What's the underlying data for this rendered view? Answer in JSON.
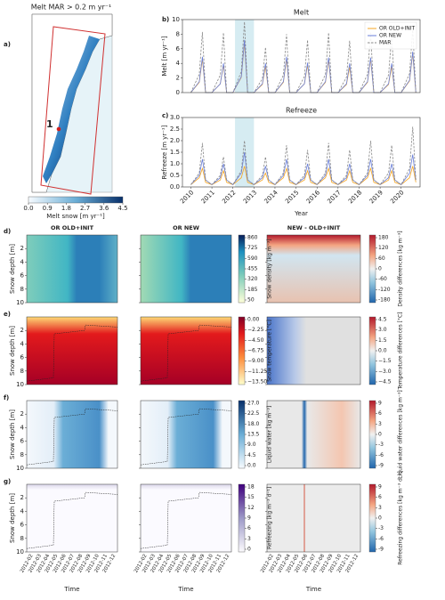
{
  "panel_labels": [
    "a)",
    "b)",
    "c)",
    "d)",
    "e)",
    "f)",
    "g)"
  ],
  "map": {
    "title": "Melt MAR > 0.2 m yr⁻¹",
    "site_label": "1",
    "colorbar": {
      "label": "Melt snow [m yr⁻¹]",
      "ticks": [
        {
          "value": 0,
          "label": "0.0"
        },
        {
          "value": 0.9,
          "label": "0.9"
        },
        {
          "value": 1.8,
          "label": "1.8"
        },
        {
          "value": 2.7,
          "label": "2.7"
        },
        {
          "value": 3.6,
          "label": "3.6"
        },
        {
          "value": 4.5,
          "label": "4.5"
        }
      ]
    }
  },
  "chart_data": [
    {
      "type": "line",
      "title": "Melt",
      "y_label": "Melt [m yr⁻¹]",
      "x_label": "Year",
      "x": [
        2010,
        2010.4,
        2010.55,
        2010.7,
        2011,
        2011.4,
        2011.55,
        2011.7,
        2012,
        2012.4,
        2012.55,
        2012.7,
        2013,
        2013.4,
        2013.55,
        2013.7,
        2014,
        2014.4,
        2014.55,
        2014.7,
        2015,
        2015.4,
        2015.55,
        2015.7,
        2016,
        2016.4,
        2016.55,
        2016.7,
        2017,
        2017.4,
        2017.55,
        2017.7,
        2018,
        2018.4,
        2018.55,
        2018.7,
        2019,
        2019.4,
        2019.55,
        2019.7,
        2020,
        2020.4,
        2020.55,
        2020.7
      ],
      "xlim": [
        2009.6,
        2020.9
      ],
      "ylim": [
        0,
        10
      ],
      "yticks": [
        0,
        2,
        4,
        6,
        8,
        10
      ],
      "highlight_x": [
        2012.1,
        2013.0
      ],
      "legend": "upper right",
      "series": [
        {
          "name": "OR OLD+INIT",
          "color": "#f5a623",
          "linestyle": "solid",
          "values": [
            0,
            1.4,
            4.6,
            0,
            0,
            1.2,
            3.8,
            0,
            0,
            2.1,
            6.9,
            0,
            0,
            1.1,
            3.6,
            0,
            0,
            1.4,
            4.6,
            0,
            0,
            1.2,
            3.8,
            0,
            0,
            1.4,
            4.5,
            0,
            0,
            1.1,
            3.5,
            0,
            0,
            1.4,
            4.6,
            0,
            0,
            1.1,
            3.6,
            0,
            0,
            1.6,
            5.4,
            0
          ]
        },
        {
          "name": "OR NEW",
          "color": "#6a7fd8",
          "linestyle": "solid",
          "values": [
            0,
            1.5,
            4.9,
            0,
            0,
            1.2,
            4.0,
            0,
            0,
            2.2,
            7.2,
            0,
            0,
            1.2,
            4.0,
            0,
            0,
            1.5,
            4.9,
            0,
            0,
            1.2,
            4.1,
            0,
            0,
            1.5,
            4.8,
            0,
            0,
            1.2,
            4.0,
            0,
            0,
            1.5,
            4.8,
            0,
            0,
            1.2,
            4.0,
            0,
            0,
            1.7,
            5.6,
            0
          ]
        },
        {
          "name": "MAR",
          "color": "#888888",
          "linestyle": "dashed",
          "values": [
            0,
            2.5,
            8.3,
            0,
            0,
            2.4,
            8.2,
            0,
            0,
            2.9,
            9.7,
            0,
            0,
            1.9,
            6.2,
            0,
            0,
            2.4,
            8.0,
            0,
            0,
            2.2,
            7.2,
            0,
            0,
            2.5,
            8.2,
            0,
            0,
            2.1,
            7.1,
            0,
            0,
            2.5,
            8.2,
            0,
            0,
            2.4,
            7.9,
            0,
            0,
            2.6,
            8.8,
            0
          ]
        }
      ]
    },
    {
      "type": "line",
      "title": "Refreeze",
      "y_label": "Refreeze [m yr⁻¹]",
      "x_label": "Year",
      "x": [
        2010,
        2010.4,
        2010.55,
        2010.7,
        2011,
        2011.4,
        2011.55,
        2011.7,
        2012,
        2012.4,
        2012.55,
        2012.7,
        2013,
        2013.4,
        2013.55,
        2013.7,
        2014,
        2014.4,
        2014.55,
        2014.7,
        2015,
        2015.4,
        2015.55,
        2015.7,
        2016,
        2016.4,
        2016.55,
        2016.7,
        2017,
        2017.4,
        2017.55,
        2017.7,
        2018,
        2018.4,
        2018.55,
        2018.7,
        2019,
        2019.4,
        2019.55,
        2019.7,
        2020,
        2020.4,
        2020.55,
        2020.7
      ],
      "xlim": [
        2009.6,
        2020.9
      ],
      "ylim": [
        0,
        3
      ],
      "yticks": [
        {
          "value": 0,
          "label": "0.0"
        },
        {
          "value": 0.5,
          "label": "0.5"
        },
        {
          "value": 1,
          "label": "1.0"
        },
        {
          "value": 1.5,
          "label": "1.5"
        },
        {
          "value": 2,
          "label": "2.0"
        },
        {
          "value": 2.5,
          "label": "2.5"
        },
        {
          "value": 3,
          "label": "3.0"
        }
      ],
      "xticks": [
        2010,
        2011,
        2012,
        2013,
        2014,
        2015,
        2016,
        2017,
        2018,
        2019,
        2020
      ],
      "highlight_x": [
        2012.1,
        2013.0
      ],
      "series": [
        {
          "name": "OR OLD+INIT",
          "color": "#f5a623",
          "linestyle": "solid",
          "values": [
            0.1,
            0.4,
            0.8,
            0.2,
            0.1,
            0.3,
            0.7,
            0.2,
            0.1,
            0.4,
            0.9,
            0.2,
            0.1,
            0.3,
            0.6,
            0.2,
            0.1,
            0.4,
            0.8,
            0.2,
            0.1,
            0.3,
            0.7,
            0.2,
            0.1,
            0.4,
            0.8,
            0.2,
            0.1,
            0.3,
            0.7,
            0.2,
            0.1,
            0.4,
            0.8,
            0.2,
            0.1,
            0.3,
            0.7,
            0.2,
            0.1,
            0.4,
            0.9,
            0.2
          ]
        },
        {
          "name": "OR NEW",
          "color": "#6a7fd8",
          "linestyle": "solid",
          "values": [
            0.1,
            0.5,
            1.2,
            0.3,
            0.1,
            0.4,
            1.0,
            0.3,
            0.1,
            0.6,
            1.5,
            0.3,
            0.1,
            0.4,
            0.9,
            0.3,
            0.1,
            0.5,
            1.2,
            0.3,
            0.1,
            0.4,
            1.0,
            0.3,
            0.1,
            0.5,
            1.2,
            0.3,
            0.1,
            0.4,
            1.0,
            0.3,
            0.1,
            0.5,
            1.2,
            0.3,
            0.1,
            0.4,
            1.0,
            0.3,
            0.1,
            0.6,
            1.4,
            0.3
          ]
        },
        {
          "name": "MAR",
          "color": "#888888",
          "linestyle": "dashed",
          "values": [
            0.1,
            0.6,
            1.9,
            0.3,
            0.1,
            0.5,
            1.3,
            0.3,
            0.1,
            0.7,
            2.0,
            0.3,
            0.1,
            0.5,
            1.3,
            0.3,
            0.1,
            0.6,
            1.8,
            0.3,
            0.1,
            0.5,
            1.6,
            0.3,
            0.1,
            0.6,
            1.9,
            0.3,
            0.1,
            0.5,
            1.6,
            0.3,
            0.1,
            0.6,
            2.0,
            0.3,
            0.1,
            0.6,
            1.8,
            0.3,
            0.1,
            0.8,
            2.6,
            0.3
          ]
        }
      ]
    }
  ],
  "heatmaps": {
    "columns": [
      "OR OLD+INIT",
      "OR NEW",
      "NEW - OLD+INIT"
    ],
    "y_label": "Snow depth [m]",
    "ylim": [
      0,
      10
    ],
    "yticks": [
      2,
      4,
      6,
      8,
      10
    ],
    "x_label": "Time",
    "xticks": [
      "2012-02",
      "2012-03",
      "2012-04",
      "2012-05",
      "2012-06",
      "2012-07",
      "2012-08",
      "2012-09",
      "2012-10",
      "2012-11",
      "2012-12"
    ],
    "rows": [
      {
        "colorbar_label": "Snow density [kg m⁻³]",
        "ticks": [
          50,
          185,
          320,
          455,
          590,
          725,
          860
        ],
        "diff_label": "Density differences [kg m⁻³]",
        "diff_ticks": [
          -180,
          -120,
          -60,
          0,
          60,
          120,
          180
        ]
      },
      {
        "colorbar_label": "Snow temperature [°C]",
        "ticks": [
          {
            "value": -13.5,
            "label": "−13.50"
          },
          {
            "value": -11.25,
            "label": "−11.25"
          },
          {
            "value": -9,
            "label": "−9.00"
          },
          {
            "value": -6.75,
            "label": "−6.75"
          },
          {
            "value": -4.5,
            "label": "−4.50"
          },
          {
            "value": -2.25,
            "label": "−2.25"
          },
          {
            "value": 0,
            "label": "0.00"
          }
        ],
        "diff_label": "Temperature differences [°C]",
        "diff_ticks": [
          {
            "value": -4.5,
            "label": "−4.5"
          },
          {
            "value": -3,
            "label": "−3.0"
          },
          {
            "value": -1.5,
            "label": "−1.5"
          },
          {
            "value": 0,
            "label": "0.0"
          },
          {
            "value": 1.5,
            "label": "1.5"
          },
          {
            "value": 3,
            "label": "3.0"
          },
          {
            "value": 4.5,
            "label": "4.5"
          }
        ]
      },
      {
        "colorbar_label": "Liquid water [kg m⁻³]",
        "ticks": [
          {
            "value": 0,
            "label": "0.0"
          },
          {
            "value": 4.5,
            "label": "4.5"
          },
          {
            "value": 9,
            "label": "9.0"
          },
          {
            "value": 13.5,
            "label": "13.5"
          },
          {
            "value": 18,
            "label": "18.0"
          },
          {
            "value": 22.5,
            "label": "22.5"
          },
          {
            "value": 27,
            "label": "27.0"
          }
        ],
        "diff_label": "Liquid water differences [kg m⁻³]",
        "diff_ticks": [
          -9,
          -6,
          -3,
          0,
          3,
          6,
          9
        ]
      },
      {
        "colorbar_label": "Refreezing [kg m⁻³ d⁻¹]",
        "ticks": [
          0,
          3,
          6,
          9,
          12,
          15,
          18
        ],
        "diff_label": "Refreezing differences [kg m⁻³ d⁻¹]",
        "diff_ticks": [
          -9,
          -6,
          -3,
          0,
          3,
          6,
          9
        ]
      }
    ]
  }
}
